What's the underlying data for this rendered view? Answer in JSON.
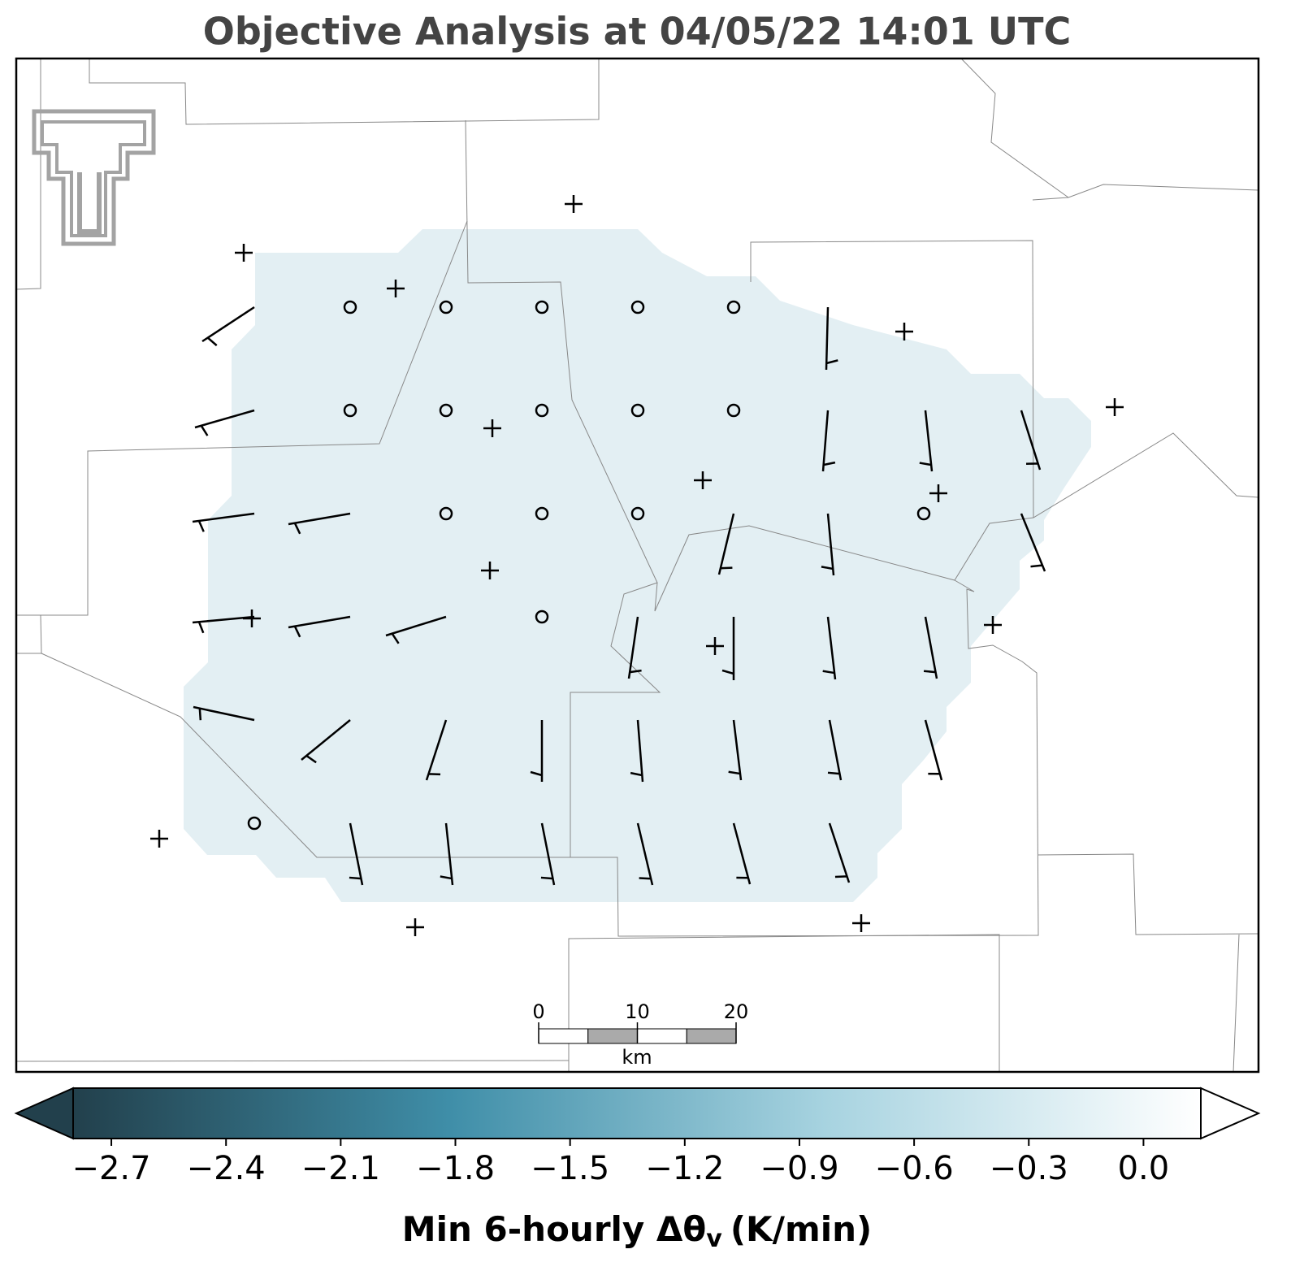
{
  "title": "Objective Analysis at 04/05/22 14:01 UTC",
  "colorbar": {
    "clim": [
      -2.8,
      0.15
    ],
    "colors": [
      "#22404c",
      "#3f8ea8",
      "#a7d3e0",
      "#ffffff"
    ],
    "ticks": [
      {
        "value": -2.7,
        "label": "−2.7"
      },
      {
        "value": -2.4,
        "label": "−2.4"
      },
      {
        "value": -2.1,
        "label": "−2.1"
      },
      {
        "value": -1.8,
        "label": "−1.8"
      },
      {
        "value": -1.5,
        "label": "−1.5"
      },
      {
        "value": -1.2,
        "label": "−1.2"
      },
      {
        "value": -0.9,
        "label": "−0.9"
      },
      {
        "value": -0.6,
        "label": "−0.6"
      },
      {
        "value": -0.3,
        "label": "−0.3"
      },
      {
        "value": 0,
        "label": "0.0"
      }
    ],
    "label_main": "Min 6-hourly Δθ",
    "label_sub": "v",
    "label_unit": "(K/min)"
  },
  "scale_bar": {
    "ticks": [
      0,
      10,
      20
    ],
    "unit": "km"
  }
}
